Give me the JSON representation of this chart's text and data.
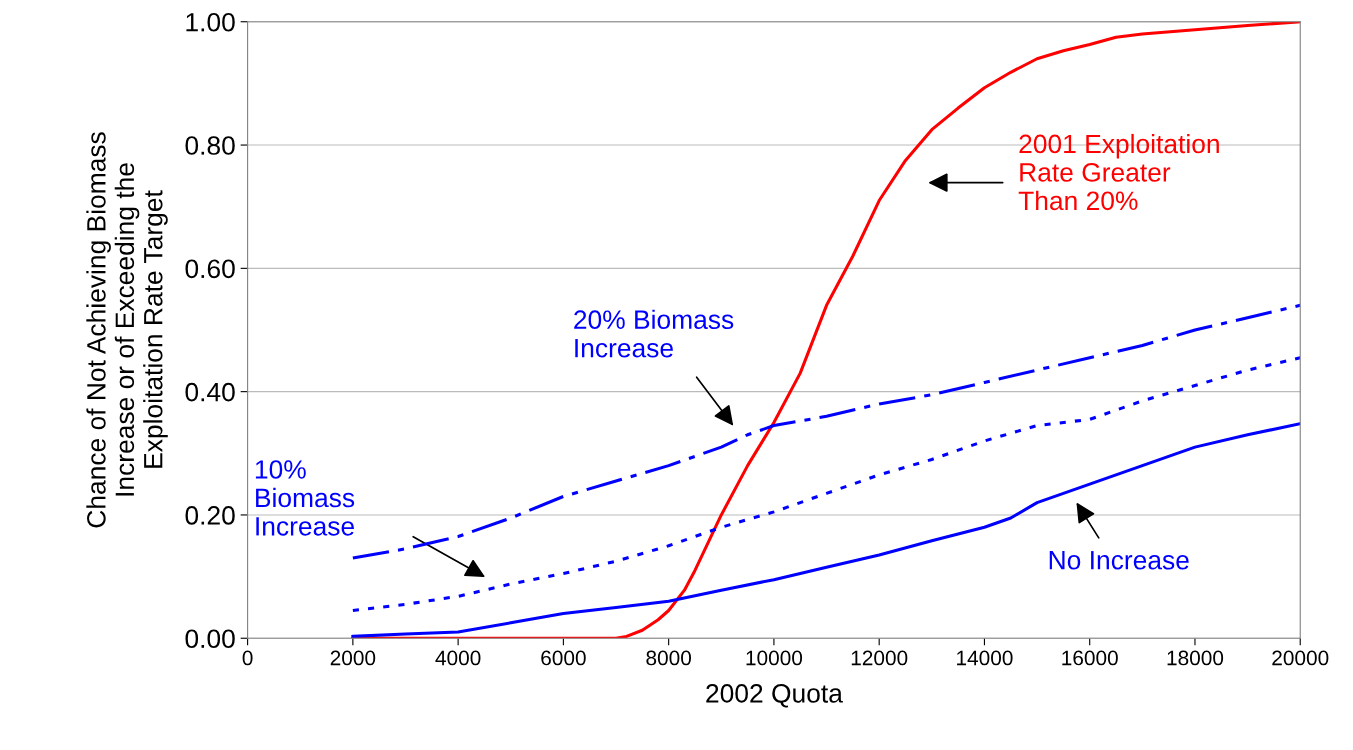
{
  "chart_data": {
    "type": "line",
    "xlabel": "2002 Quota",
    "ylabel": "Chance of Not Achieving Biomass\nIncrease or of Exceeding the\nExploitation Rate Target",
    "xlim": [
      0,
      20000
    ],
    "xticks": [
      0,
      2000,
      4000,
      6000,
      8000,
      10000,
      12000,
      14000,
      16000,
      18000,
      20000
    ],
    "ylim": [
      0,
      1
    ],
    "yticks": [
      {
        "value": 0,
        "label": "0.00"
      },
      {
        "value": 0.2,
        "label": "0.20"
      },
      {
        "value": 0.4,
        "label": "0.40"
      },
      {
        "value": 0.6,
        "label": "0.60"
      },
      {
        "value": 0.8,
        "label": "0.80"
      },
      {
        "value": 1,
        "label": "1.00"
      }
    ],
    "grid": "y",
    "marker": "none",
    "series": [
      {
        "color": "#ff0000",
        "line_style": "solid",
        "x": [
          2000,
          3000,
          4000,
          5000,
          6000,
          7000,
          7200,
          7500,
          7800,
          8000,
          8300,
          8500,
          9000,
          9500,
          10000,
          10500,
          11000,
          11500,
          12000,
          12500,
          13000,
          13500,
          14000,
          14500,
          15000,
          15500,
          16000,
          16500,
          17000,
          18000,
          19000,
          20000
        ],
        "values": [
          0,
          0,
          0,
          0,
          0,
          0,
          0.003,
          0.013,
          0.03,
          0.045,
          0.078,
          0.11,
          0.2,
          0.28,
          0.35,
          0.43,
          0.54,
          0.62,
          0.71,
          0.775,
          0.825,
          0.86,
          0.893,
          0.918,
          0.94,
          0.953,
          0.963,
          0.975,
          0.98,
          0.987,
          0.994,
          1.0
        ]
      },
      {
        "color": "#0000ff",
        "line_style": "dashed",
        "x": [
          2000,
          3000,
          4000,
          5000,
          6000,
          7000,
          8000,
          9000,
          9500,
          10000,
          11000,
          12000,
          13000,
          14000,
          15000,
          16000,
          17000,
          18000,
          19000,
          20000
        ],
        "values": [
          0.13,
          0.145,
          0.165,
          0.195,
          0.23,
          0.255,
          0.28,
          0.31,
          0.33,
          0.345,
          0.36,
          0.38,
          0.395,
          0.415,
          0.435,
          0.455,
          0.475,
          0.5,
          0.52,
          0.54
        ]
      },
      {
        "color": "#0000ff",
        "line_style": "dotted",
        "x": [
          2000,
          3000,
          4000,
          5000,
          6000,
          7000,
          8000,
          9000,
          10000,
          11000,
          12000,
          13000,
          14000,
          15000,
          16000,
          17000,
          18000,
          19000,
          20000
        ],
        "values": [
          0.045,
          0.055,
          0.068,
          0.088,
          0.105,
          0.125,
          0.15,
          0.18,
          0.205,
          0.235,
          0.265,
          0.29,
          0.32,
          0.345,
          0.355,
          0.385,
          0.41,
          0.435,
          0.455
        ]
      },
      {
        "color": "#0000ff",
        "line_style": "solid",
        "x": [
          2000,
          3000,
          4000,
          5000,
          6000,
          7000,
          8000,
          9000,
          10000,
          11000,
          12000,
          13000,
          14000,
          14500,
          15000,
          16000,
          17000,
          18000,
          19000,
          20000
        ],
        "values": [
          0.003,
          0.007,
          0.01,
          0.025,
          0.04,
          0.05,
          0.06,
          0.078,
          0.095,
          0.115,
          0.135,
          0.158,
          0.18,
          0.195,
          0.22,
          0.25,
          0.28,
          0.31,
          0.33,
          0.348
        ]
      }
    ],
    "annotations": [
      "2001 Exploitation\nRate Greater\nThan 20%",
      "20% Biomass\nIncrease",
      "10%\nBiomass\nIncrease",
      "No Increase"
    ]
  }
}
